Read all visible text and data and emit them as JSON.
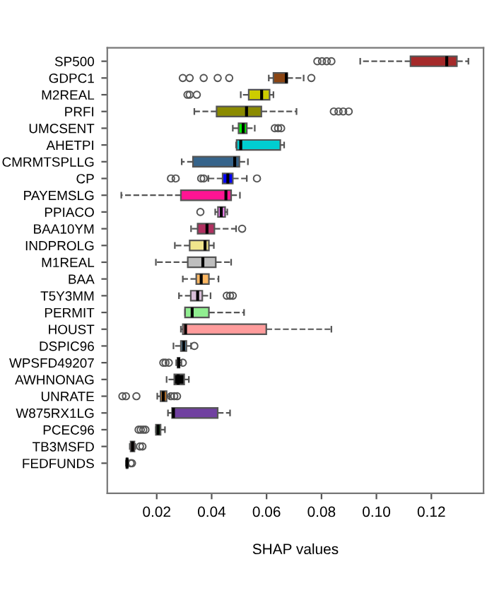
{
  "chart_data": {
    "type": "box",
    "orientation": "horizontal",
    "xlabel": "SHAP values",
    "categories": [
      "SP500",
      "GDPC1",
      "M2REAL",
      "PRFI",
      "UMCSENT",
      "AHETPI",
      "CMRMTSPLLG",
      "CP",
      "PAYEMSLG",
      "PPIACO",
      "BAA10YM",
      "INDPROLG",
      "M1REAL",
      "BAA",
      "T5Y3MM",
      "PERMIT",
      "HOUST",
      "DSPIC96",
      "WPSFD49207",
      "AWHNONAG",
      "UNRATE",
      "W875RX1LG",
      "PCEC96",
      "TB3MSFD",
      "FEDFUNDS"
    ],
    "colors": [
      "#a52a2a",
      "#8b4513",
      "#cdcd00",
      "#8b8b00",
      "#00ee00",
      "#00ced1",
      "#36648b",
      "#0000ff",
      "#ff1493",
      "#ee82ee",
      "#b03060",
      "#f0e68c",
      "#bebebe",
      "#fdb863",
      "#d8bfd8",
      "#90ee90",
      "#ff9c9c",
      "#6ca6cd",
      "#333333",
      "#000000",
      "#d2791d",
      "#7040a0",
      "#006400",
      "#ff0000",
      "#ffffff"
    ],
    "boxes": [
      {
        "low": 0.0941,
        "q1": 0.1124,
        "median": 0.1256,
        "q3": 0.1293,
        "high": 0.1335,
        "outliers": [
          0.0785,
          0.0802,
          0.0819,
          0.0836
        ]
      },
      {
        "low": 0.0608,
        "q1": 0.0625,
        "median": 0.0672,
        "q3": 0.0675,
        "high": 0.0735,
        "outliers": [
          0.0295,
          0.032,
          0.0371,
          0.0422,
          0.0464,
          0.0763
        ]
      },
      {
        "low": 0.0506,
        "q1": 0.0535,
        "median": 0.0582,
        "q3": 0.0611,
        "high": 0.0625,
        "outliers": [
          0.0312,
          0.032,
          0.0346
        ]
      },
      {
        "low": 0.0337,
        "q1": 0.0418,
        "median": 0.0527,
        "q3": 0.0581,
        "high": 0.0709,
        "outliers": [
          0.0845,
          0.0862,
          0.0879,
          0.0899
        ]
      },
      {
        "low": 0.0477,
        "q1": 0.0498,
        "median": 0.0515,
        "q3": 0.0528,
        "high": 0.0557,
        "outliers": [
          0.063,
          0.0642,
          0.0653
        ]
      },
      {
        "low": 0.0489,
        "q1": 0.0491,
        "median": 0.0506,
        "q3": 0.065,
        "high": 0.0664
      },
      {
        "low": 0.0291,
        "q1": 0.0332,
        "median": 0.0484,
        "q3": 0.0501,
        "high": 0.0532
      },
      {
        "low": 0.0388,
        "q1": 0.044,
        "median": 0.0459,
        "q3": 0.0477,
        "high": 0.0528,
        "outliers": [
          0.0252,
          0.0269,
          0.0362,
          0.0371,
          0.0565
        ]
      },
      {
        "low": 0.0071,
        "q1": 0.0288,
        "median": 0.0452,
        "q3": 0.0471,
        "high": 0.0503
      },
      {
        "low": 0.0413,
        "q1": 0.0423,
        "median": 0.0435,
        "q3": 0.0449,
        "high": 0.0457,
        "outliers": [
          0.0359
        ]
      },
      {
        "low": 0.0325,
        "q1": 0.0349,
        "median": 0.0383,
        "q3": 0.041,
        "high": 0.0489,
        "outliers": [
          0.0511
        ]
      },
      {
        "low": 0.0266,
        "q1": 0.032,
        "median": 0.0376,
        "q3": 0.039,
        "high": 0.0408
      },
      {
        "low": 0.0197,
        "q1": 0.0313,
        "median": 0.0368,
        "q3": 0.0415,
        "high": 0.0471
      },
      {
        "low": 0.0295,
        "q1": 0.0344,
        "median": 0.0362,
        "q3": 0.039,
        "high": 0.0425
      },
      {
        "low": 0.0281,
        "q1": 0.0324,
        "median": 0.0349,
        "q3": 0.0366,
        "high": 0.0396,
        "outliers": [
          0.0455,
          0.0467,
          0.0477
        ]
      },
      {
        "low": 0.0303,
        "q1": 0.0303,
        "median": 0.0329,
        "q3": 0.039,
        "high": 0.0518
      },
      {
        "low": 0.0288,
        "q1": 0.0295,
        "median": 0.0305,
        "q3": 0.0599,
        "high": 0.0836
      },
      {
        "low": 0.0261,
        "q1": 0.0288,
        "median": 0.0298,
        "q3": 0.0308,
        "high": 0.0325,
        "outliers": [
          0.0337
        ]
      },
      {
        "low": 0.0271,
        "q1": 0.0276,
        "median": 0.028,
        "q3": 0.0283,
        "high": 0.029,
        "outliers": [
          0.0224,
          0.0232,
          0.0244,
          0.0295
        ]
      },
      {
        "low": 0.0236,
        "q1": 0.0264,
        "median": 0.0278,
        "q3": 0.03,
        "high": 0.0317
      },
      {
        "low": 0.0202,
        "q1": 0.0214,
        "median": 0.0224,
        "q3": 0.0236,
        "high": 0.0247,
        "outliers": [
          0.0075,
          0.0088,
          0.0126,
          0.0252,
          0.0264,
          0.0274
        ]
      },
      {
        "low": 0.0241,
        "q1": 0.0256,
        "median": 0.0261,
        "q3": 0.0422,
        "high": 0.0467
      },
      {
        "low": 0.0197,
        "q1": 0.0197,
        "median": 0.0205,
        "q3": 0.0214,
        "high": 0.023,
        "outliers": [
          0.0134,
          0.0142,
          0.0151,
          0.0159
        ]
      },
      {
        "low": 0.0102,
        "q1": 0.0105,
        "median": 0.0112,
        "q3": 0.0119,
        "high": 0.0122,
        "outliers": [
          0.0139,
          0.0148
        ]
      },
      {
        "low": 0.0088,
        "q1": 0.009,
        "median": 0.0092,
        "q3": 0.0094,
        "high": 0.0095,
        "outliers": [
          0.0105,
          0.011
        ]
      }
    ],
    "xlim": [
      0.002,
      0.139
    ],
    "xticks": [
      {
        "value": 0.02,
        "label": "0.02"
      },
      {
        "value": 0.04,
        "label": "0.04"
      },
      {
        "value": 0.06,
        "label": "0.06"
      },
      {
        "value": 0.08,
        "label": "0.08"
      },
      {
        "value": 0.1,
        "label": "0.10"
      },
      {
        "value": 0.12,
        "label": "0.12"
      }
    ],
    "grid": false,
    "line_style": "dashed"
  }
}
